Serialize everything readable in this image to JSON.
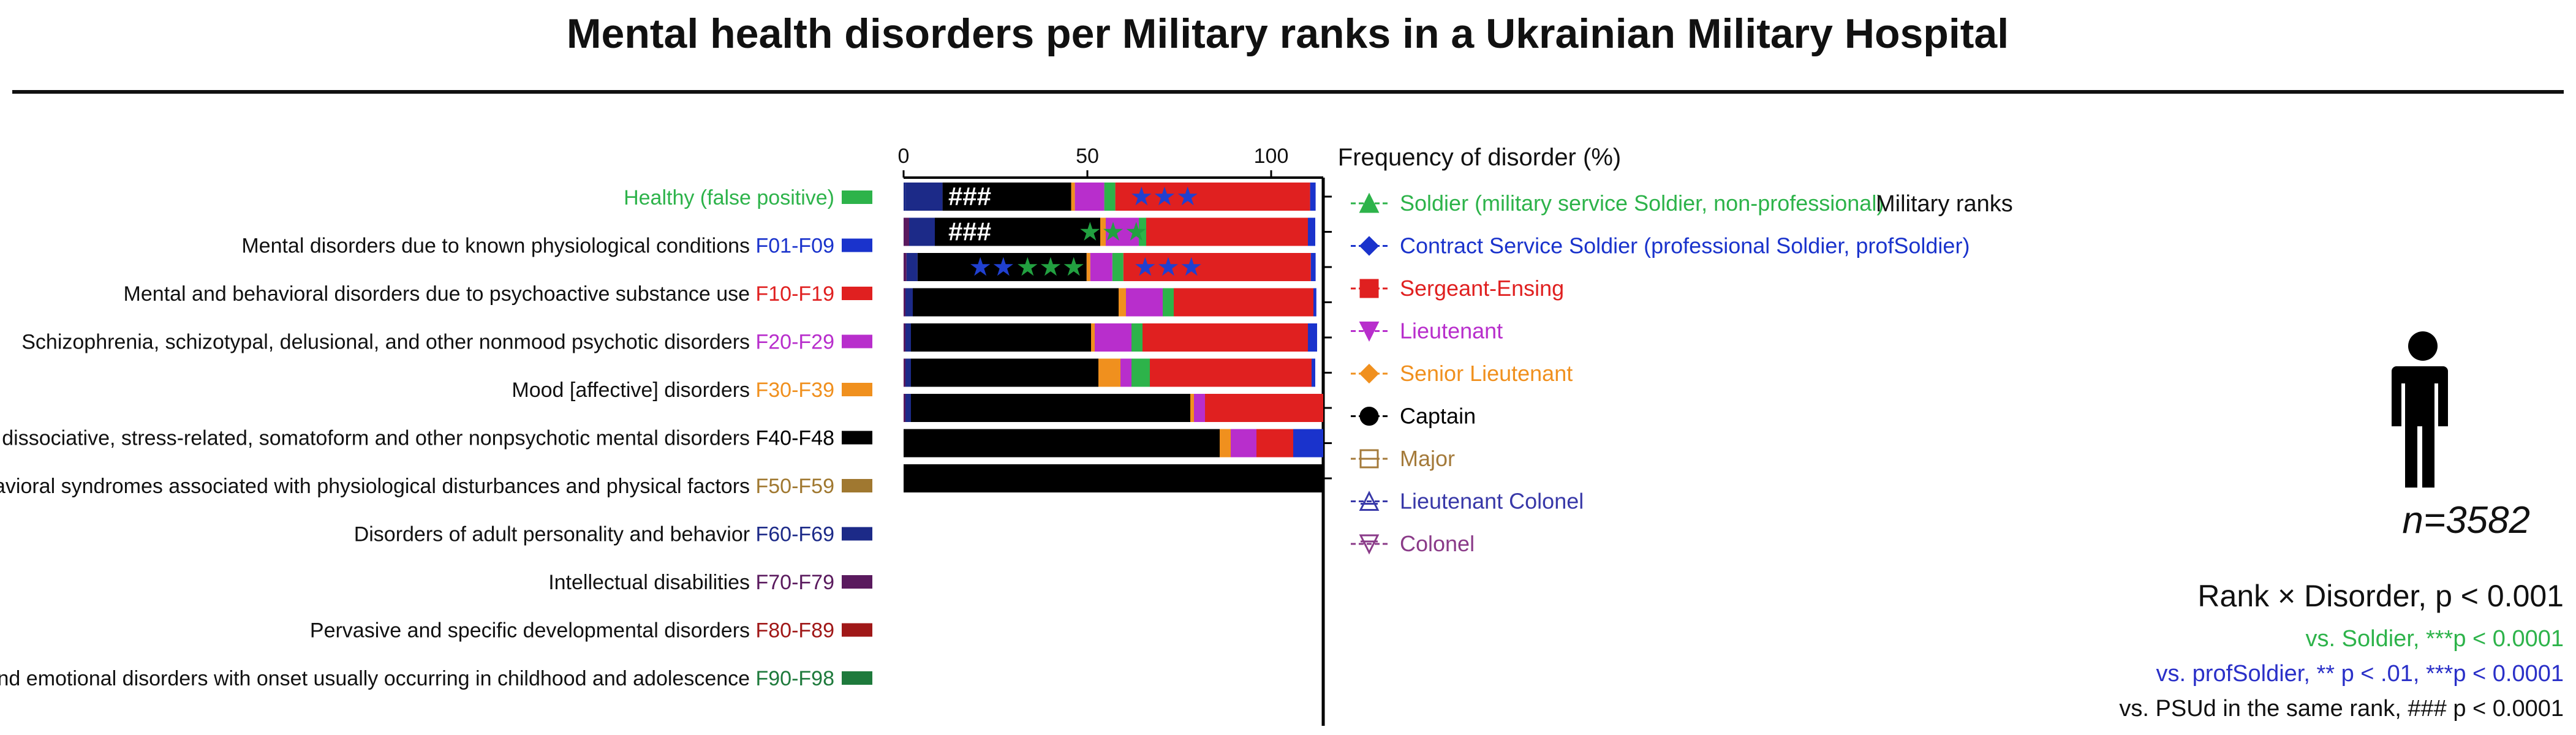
{
  "chart_data": {
    "type": "bar",
    "orientation": "horizontal",
    "stacked": true,
    "title": "Mental health disorders per Military ranks in a Ukrainian Military Hospital",
    "xlabel": "Frequency of disorder (%)",
    "xlim": [
      0,
      110
    ],
    "xticks": [
      "0",
      "50",
      "100"
    ],
    "xtick_values": [
      0,
      50,
      100
    ],
    "categories": [
      "Soldier (military service Soldier, non-professional)",
      "Contract Service Soldier (professional Soldier, profSoldier)",
      "Sergeant-Ensing",
      "Lieutenant",
      "Senior Lieutenant",
      "Captain",
      "Major",
      "Lieutenant Colonel",
      "Colonel"
    ],
    "category_colors": [
      "#2db34a",
      "#1a33cc",
      "#e02020",
      "#b82ecc",
      "#f0901e",
      "#000000",
      "#a47a3a",
      "#3838a8",
      "#8a3a88"
    ],
    "category_markers": [
      "triangle-up",
      "diamond",
      "square",
      "triangle-down",
      "diamond",
      "hexagon",
      "square-open",
      "triangle-open",
      "triangle-down-open"
    ],
    "series": [
      {
        "name": "Healthy (false positive)",
        "code": "",
        "color": "#2db34a",
        "values": [
          0,
          0,
          0,
          0,
          0,
          0,
          0,
          0,
          0
        ]
      },
      {
        "name": "Mental disorders due to known physiological conditions",
        "code": "F01-F09",
        "color": "#1a33cc",
        "values": [
          0.5,
          0.3,
          0.3,
          0.3,
          0.5,
          0.3,
          0.5,
          0,
          0
        ]
      },
      {
        "name": "Mental and behavioral disorders due to psychoactive substance use",
        "code": "F10-F19",
        "color": "#e02020",
        "values": [
          0.3,
          0.3,
          0.3,
          0.3,
          0.3,
          0.3,
          0.3,
          0,
          0
        ]
      },
      {
        "name": "Schizophrenia, schizotypal, delusional, and other nonmood psychotic disorders",
        "code": "F20-F29",
        "color": "#b82ecc",
        "values": [
          0.5,
          0.5,
          0.5,
          0.5,
          0.3,
          0.3,
          0.5,
          0,
          0
        ]
      },
      {
        "name": "Mood [affective] disorders",
        "code": "F30-F39",
        "color": "#f0901e",
        "values": [
          0,
          0,
          0,
          0,
          0,
          0,
          0,
          0,
          0
        ]
      },
      {
        "name": "Anxiety, dissociative, stress-related, somatoform and other nonpsychotic mental disorders",
        "code": "F40-F48",
        "color": "#000000",
        "values": [
          0,
          0,
          0,
          0,
          0,
          0,
          0,
          0,
          0
        ]
      },
      {
        "name": "Behavioral syndromes associated with physiological disturbances and physical factors",
        "code": "F50-F59",
        "color": "#a07830",
        "values": [
          0,
          0,
          0,
          0,
          0,
          0,
          0,
          0,
          0
        ]
      },
      {
        "name": "Disorders of adult personality and behavior",
        "code": "F60-F69",
        "color": "#1c2a88",
        "values": [
          10,
          7,
          3,
          2,
          2,
          1.5,
          1.5,
          0,
          0
        ]
      },
      {
        "name": "Intellectual disabilities",
        "code": "F70-F79",
        "color": "#5a1a5e",
        "values": [
          1,
          2,
          1,
          0.5,
          0.5,
          0.5,
          0.5,
          0,
          0
        ]
      },
      {
        "name": "Pervasive and specific developmental disorders",
        "code": "F80-F89",
        "color": "#a01818",
        "values": [
          0,
          0,
          0,
          0,
          0,
          0,
          0,
          0,
          0
        ]
      },
      {
        "name": "Behavioral and emotional disorders with onset usually occurring in childhood and adolescence",
        "code": "F90-F98",
        "color": "#1e7a3c",
        "values": [
          0,
          0,
          0,
          0,
          0,
          0,
          0,
          0,
          0
        ]
      }
    ],
    "bar_segments": [
      [
        {
          "series": "F60-F69",
          "value": 10
        },
        {
          "series": "F40-F48",
          "value": 35
        },
        {
          "series": "F30-F39",
          "value": 1
        },
        {
          "series": "F20-F29",
          "value": 8
        },
        {
          "series": "Healthy",
          "value": 3
        },
        {
          "series": "F10-F19",
          "value": 53
        },
        {
          "series": "F01-F09",
          "value": 1.5
        }
      ]
    ],
    "stacks": [
      [
        [
          0.6,
          "#1c2a88"
        ],
        [
          10,
          "#1c2a88"
        ],
        [
          35,
          "#000000"
        ],
        [
          1,
          "#f0901e"
        ],
        [
          8,
          "#b82ecc"
        ],
        [
          3,
          "#2db34a"
        ],
        [
          53,
          "#e02020"
        ],
        [
          1.5,
          "#1a33cc"
        ]
      ],
      [
        [
          1.5,
          "#5a1a5e"
        ],
        [
          7,
          "#1c2a88"
        ],
        [
          45,
          "#000000"
        ],
        [
          1.5,
          "#f0901e"
        ],
        [
          9,
          "#b82ecc"
        ],
        [
          2,
          "#2db34a"
        ],
        [
          44,
          "#e02020"
        ],
        [
          2,
          "#1a33cc"
        ]
      ],
      [
        [
          0.8,
          "#5a1a5e"
        ],
        [
          3,
          "#1c2a88"
        ],
        [
          46,
          "#000000"
        ],
        [
          1,
          "#f0901e"
        ],
        [
          6,
          "#b82ecc"
        ],
        [
          3,
          "#2db34a"
        ],
        [
          51,
          "#e02020"
        ],
        [
          1.3,
          "#1a33cc"
        ]
      ],
      [
        [
          0.5,
          "#5a1a5e"
        ],
        [
          2,
          "#1c2a88"
        ],
        [
          56,
          "#000000"
        ],
        [
          2,
          "#f0901e"
        ],
        [
          10,
          "#b82ecc"
        ],
        [
          3,
          "#2db34a"
        ],
        [
          38,
          "#e02020"
        ],
        [
          0.8,
          "#1a33cc"
        ]
      ],
      [
        [
          0.5,
          "#5a1a5e"
        ],
        [
          1.5,
          "#1c2a88"
        ],
        [
          49,
          "#000000"
        ],
        [
          1,
          "#f0901e"
        ],
        [
          10,
          "#b82ecc"
        ],
        [
          3,
          "#2db34a"
        ],
        [
          45,
          "#e02020"
        ],
        [
          2.5,
          "#1a33cc"
        ]
      ],
      [
        [
          0.5,
          "#5a1a5e"
        ],
        [
          1.5,
          "#1c2a88"
        ],
        [
          51,
          "#000000"
        ],
        [
          6,
          "#f0901e"
        ],
        [
          3,
          "#b82ecc"
        ],
        [
          5,
          "#2db34a"
        ],
        [
          44,
          "#e02020"
        ],
        [
          1,
          "#1a33cc"
        ]
      ],
      [
        [
          0.5,
          "#5a1a5e"
        ],
        [
          1.5,
          "#1c2a88"
        ],
        [
          76,
          "#000000"
        ],
        [
          1,
          "#f0901e"
        ],
        [
          3,
          "#b82ecc"
        ],
        [
          41,
          "#e02020"
        ],
        [
          0.8,
          "#1a33cc"
        ]
      ],
      [
        [
          86,
          "#000000"
        ],
        [
          3,
          "#f0901e"
        ],
        [
          7,
          "#b82ecc"
        ],
        [
          10,
          "#e02020"
        ],
        [
          9,
          "#1a33cc"
        ]
      ],
      [
        [
          115,
          "#000000"
        ]
      ]
    ],
    "bar_annotations": [
      [
        {
          "text": "###",
          "x": 18,
          "color": "#ffffff"
        },
        {
          "text": "★★★",
          "x": 71,
          "color": "#2040d0"
        }
      ],
      [
        {
          "text": "###",
          "x": 18,
          "color": "#ffffff"
        },
        {
          "text": "★★★",
          "x": 57,
          "color": "#22a040"
        }
      ],
      [
        {
          "text": "★★",
          "x": 24,
          "color": "#2040d0"
        },
        {
          "text": "★★★",
          "x": 40,
          "color": "#22a040"
        },
        {
          "text": "★★★",
          "x": 72,
          "color": "#2040d0"
        }
      ]
    ],
    "legend_title": "Military ranks",
    "sample_size_label": "n=3582",
    "stats": {
      "main": "Rank × Disorder, p < 0.001",
      "vs_soldier": "vs. Soldier, ***p < 0.0001",
      "vs_profsoldier": "vs. profSoldier, ** p < .01, ***p < 0.0001",
      "vs_psud": "vs. PSUd in the same rank, ### p < 0.0001"
    }
  }
}
